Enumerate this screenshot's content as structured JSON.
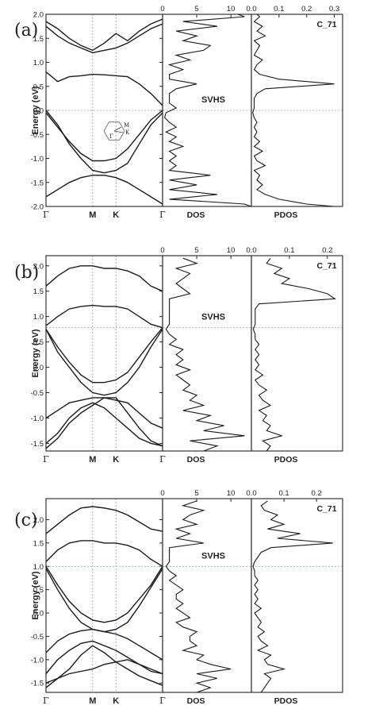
{
  "chart_data": [
    {
      "type": "line",
      "label": "(a)",
      "annotation": "C_71",
      "svhs_label": "SVHS",
      "ylabel": "Energy (eV)",
      "ylim": [
        -2.0,
        2.0
      ],
      "yticks": [
        "2.0",
        "1.5",
        "1.0",
        "0.5",
        "0.0",
        "-0.5",
        "-1.0",
        "-1.5",
        "-2.0"
      ],
      "ytick_values": [
        2.0,
        1.5,
        1.0,
        0.5,
        0.0,
        -0.5,
        -1.0,
        -1.5,
        -2.0
      ],
      "kpoints": [
        "Γ",
        "M",
        "K",
        "Γ"
      ],
      "kpoint_positions": [
        0,
        0.4,
        0.6,
        1.0
      ],
      "fermi_level": 0.0,
      "bands": {
        "k": [
          0,
          0.1,
          0.2,
          0.3,
          0.4,
          0.5,
          0.6,
          0.7,
          0.8,
          0.9,
          1.0
        ],
        "series": [
          {
            "values": [
              1.85,
              1.7,
              1.5,
              1.35,
              1.25,
              1.4,
              1.6,
              1.45,
              1.65,
              1.8,
              1.9
            ]
          },
          {
            "values": [
              1.75,
              1.55,
              1.4,
              1.3,
              1.2,
              1.25,
              1.3,
              1.4,
              1.55,
              1.7,
              1.8
            ]
          },
          {
            "values": [
              0.8,
              0.6,
              0.7,
              0.72,
              0.75,
              0.74,
              0.72,
              0.7,
              0.55,
              0.35,
              0.1
            ]
          },
          {
            "values": [
              -0.05,
              -0.35,
              -0.65,
              -0.9,
              -1.05,
              -1.05,
              -1.0,
              -0.8,
              -0.5,
              -0.2,
              0.0
            ]
          },
          {
            "values": [
              0.0,
              -0.3,
              -0.7,
              -1.0,
              -1.25,
              -1.3,
              -1.25,
              -1.1,
              -0.7,
              -0.3,
              -0.05
            ]
          },
          {
            "values": [
              -1.8,
              -1.65,
              -1.5,
              -1.4,
              -1.35,
              -1.35,
              -1.4,
              -1.5,
              -1.65,
              -1.8,
              -1.95
            ]
          }
        ]
      },
      "dos": {
        "xlabel": "DOS",
        "xticks": [
          "0",
          "5",
          "10"
        ],
        "xtick_values": [
          0,
          5,
          10
        ],
        "xlim": [
          0,
          13
        ],
        "energy": [
          2.0,
          1.95,
          1.85,
          1.75,
          1.65,
          1.55,
          1.45,
          1.35,
          1.25,
          1.15,
          1.05,
          0.95,
          0.85,
          0.75,
          0.65,
          0.55,
          0.45,
          0.35,
          0.25,
          0.15,
          0.05,
          -0.05,
          -0.15,
          -0.25,
          -0.35,
          -0.45,
          -0.55,
          -0.65,
          -0.75,
          -0.85,
          -0.95,
          -1.05,
          -1.15,
          -1.25,
          -1.35,
          -1.45,
          -1.55,
          -1.65,
          -1.75,
          -1.85,
          -1.95,
          -2.0
        ],
        "values": [
          11,
          12,
          3,
          8,
          2,
          5,
          3,
          7,
          6,
          2,
          4,
          1,
          3,
          1,
          1,
          5,
          2,
          1,
          1,
          1,
          2,
          0.5,
          0.3,
          1,
          2,
          0.5,
          2,
          1,
          3,
          1,
          2,
          1,
          2,
          1,
          7,
          1,
          5,
          1,
          8,
          1,
          12,
          13
        ]
      },
      "pdos": {
        "xlabel": "PDOS",
        "xticks": [
          "0.0",
          "0.1",
          "0.2",
          "0.3"
        ],
        "xtick_values": [
          0.0,
          0.1,
          0.2,
          0.3
        ],
        "xlim": [
          0,
          0.33
        ],
        "energy": [
          2.0,
          1.95,
          1.85,
          1.75,
          1.65,
          1.55,
          1.45,
          1.35,
          1.25,
          1.15,
          1.05,
          0.95,
          0.85,
          0.75,
          0.65,
          0.55,
          0.45,
          0.35,
          0.25,
          0.15,
          0.05,
          -0.05,
          -0.15,
          -0.25,
          -0.35,
          -0.45,
          -0.55,
          -0.65,
          -0.75,
          -0.85,
          -0.95,
          -1.05,
          -1.15,
          -1.25,
          -1.35,
          -1.45,
          -1.55,
          -1.65,
          -1.75,
          -1.85,
          -1.95,
          -2.0
        ],
        "values": [
          0.02,
          0.03,
          0.01,
          0.04,
          0.02,
          0.05,
          0.01,
          0.03,
          0.02,
          0.01,
          0.04,
          0.02,
          0.01,
          0.03,
          0.1,
          0.3,
          0.05,
          0.02,
          0.01,
          0.01,
          0.01,
          0.005,
          0.01,
          0.02,
          0.01,
          0.02,
          0.01,
          0.03,
          0.01,
          0.04,
          0.01,
          0.02,
          0.05,
          0.01,
          0.03,
          0.02,
          0.04,
          0.02,
          0.05,
          0.1,
          0.2,
          0.3
        ]
      }
    },
    {
      "type": "line",
      "label": "(b)",
      "annotation": "C_71",
      "svhs_label": "SVHS",
      "ylabel": "Energy (eV)",
      "ylim": [
        -1.65,
        2.2
      ],
      "yticks": [
        "2.0",
        "1.5",
        "1.0",
        "0.5",
        "0.0",
        "-0.5",
        "-1.0",
        "-1.5"
      ],
      "ytick_values": [
        2.0,
        1.5,
        1.0,
        0.5,
        0.0,
        -0.5,
        -1.0,
        -1.5
      ],
      "kpoints": [
        "Γ",
        "M",
        "K",
        "Γ"
      ],
      "kpoint_positions": [
        0,
        0.4,
        0.6,
        1.0
      ],
      "fermi_level": 0.78,
      "bands": {
        "k": [
          0,
          0.1,
          0.2,
          0.3,
          0.4,
          0.5,
          0.6,
          0.7,
          0.8,
          0.9,
          1.0
        ],
        "series": [
          {
            "values": [
              1.6,
              1.8,
              1.95,
              2.0,
              2.0,
              1.95,
              1.95,
              1.9,
              1.8,
              1.6,
              1.5
            ]
          },
          {
            "values": [
              0.82,
              1.0,
              1.15,
              1.2,
              1.22,
              1.2,
              1.2,
              1.15,
              1.0,
              0.85,
              0.78
            ]
          },
          {
            "values": [
              0.75,
              0.4,
              0.1,
              -0.15,
              -0.3,
              -0.3,
              -0.25,
              -0.1,
              0.2,
              0.5,
              0.78
            ]
          },
          {
            "values": [
              0.75,
              0.3,
              0.0,
              -0.3,
              -0.5,
              -0.55,
              -0.5,
              -0.3,
              0.0,
              0.4,
              0.75
            ]
          },
          {
            "values": [
              -1.0,
              -0.85,
              -0.7,
              -0.65,
              -0.6,
              -0.6,
              -0.65,
              -0.7,
              -0.9,
              -1.1,
              -1.2
            ]
          },
          {
            "values": [
              -1.5,
              -1.3,
              -1.0,
              -0.8,
              -0.7,
              -0.8,
              -1.0,
              -1.2,
              -1.4,
              -1.5,
              -1.55
            ]
          },
          {
            "values": [
              -1.6,
              -1.4,
              -1.1,
              -0.9,
              -0.75,
              -0.6,
              -0.6,
              -0.9,
              -1.2,
              -1.45,
              -1.55
            ]
          }
        ]
      },
      "dos": {
        "xlabel": "DOS",
        "xticks": [
          "0",
          "5",
          "10"
        ],
        "xtick_values": [
          0,
          5,
          10
        ],
        "xlim": [
          0,
          13
        ],
        "energy": [
          2.15,
          2.05,
          1.95,
          1.85,
          1.75,
          1.65,
          1.55,
          1.45,
          1.35,
          1.25,
          1.15,
          1.05,
          0.95,
          0.85,
          0.75,
          0.65,
          0.55,
          0.45,
          0.35,
          0.25,
          0.15,
          0.05,
          -0.05,
          -0.15,
          -0.25,
          -0.35,
          -0.45,
          -0.55,
          -0.65,
          -0.75,
          -0.85,
          -0.95,
          -1.05,
          -1.15,
          -1.25,
          -1.35,
          -1.45,
          -1.55,
          -1.65
        ],
        "values": [
          3,
          5,
          2,
          4,
          3,
          2,
          3,
          4,
          1,
          1,
          1,
          1,
          1,
          1,
          0.5,
          1,
          2,
          1,
          3,
          2,
          3,
          2,
          4,
          2,
          3,
          4,
          3,
          5,
          4,
          6,
          3,
          7,
          5,
          9,
          6,
          12,
          4,
          8,
          6
        ]
      },
      "pdos": {
        "xlabel": "PDOS",
        "xticks": [
          "0.0",
          "0.1",
          "0.2"
        ],
        "xtick_values": [
          0.0,
          0.1,
          0.2
        ],
        "xlim": [
          0,
          0.24
        ],
        "energy": [
          2.15,
          2.05,
          1.95,
          1.85,
          1.75,
          1.65,
          1.55,
          1.45,
          1.35,
          1.25,
          1.15,
          1.05,
          0.95,
          0.85,
          0.75,
          0.65,
          0.55,
          0.45,
          0.35,
          0.25,
          0.15,
          0.05,
          -0.05,
          -0.15,
          -0.25,
          -0.35,
          -0.45,
          -0.55,
          -0.65,
          -0.75,
          -0.85,
          -0.95,
          -1.05,
          -1.15,
          -1.25,
          -1.35,
          -1.45,
          -1.55,
          -1.65
        ],
        "values": [
          0.05,
          0.04,
          0.08,
          0.06,
          0.1,
          0.08,
          0.15,
          0.2,
          0.22,
          0.02,
          0.01,
          0.01,
          0.01,
          0.01,
          0.005,
          0.01,
          0.01,
          0.02,
          0.01,
          0.02,
          0.01,
          0.02,
          0.01,
          0.03,
          0.01,
          0.02,
          0.04,
          0.02,
          0.03,
          0.05,
          0.02,
          0.04,
          0.03,
          0.05,
          0.04,
          0.08,
          0.03,
          0.05,
          0.04
        ]
      }
    },
    {
      "type": "line",
      "label": "(c)",
      "annotation": "C_71",
      "svhs_label": "SVHS",
      "ylabel": "Energy (eV)",
      "ylim": [
        -1.7,
        2.45
      ],
      "yticks": [
        "2.0",
        "1.5",
        "1.0",
        "0.5",
        "0.0",
        "-0.5",
        "-1.0",
        "-1.5"
      ],
      "ytick_values": [
        2.0,
        1.5,
        1.0,
        0.5,
        0.0,
        -0.5,
        -1.0,
        -1.5
      ],
      "kpoints": [
        "Γ",
        "M",
        "K",
        "Γ"
      ],
      "kpoint_positions": [
        0,
        0.4,
        0.6,
        1.0
      ],
      "fermi_level": 1.0,
      "bands": {
        "k": [
          0,
          0.1,
          0.2,
          0.3,
          0.4,
          0.5,
          0.6,
          0.7,
          0.8,
          0.9,
          1.0
        ],
        "series": [
          {
            "values": [
              1.7,
              1.9,
              2.1,
              2.25,
              2.28,
              2.25,
              2.2,
              2.1,
              1.95,
              1.8,
              1.75
            ]
          },
          {
            "values": [
              1.1,
              1.35,
              1.5,
              1.55,
              1.55,
              1.5,
              1.5,
              1.45,
              1.35,
              1.15,
              1.0
            ]
          },
          {
            "values": [
              1.0,
              0.6,
              0.25,
              0.0,
              -0.15,
              -0.2,
              -0.15,
              0.0,
              0.3,
              0.6,
              1.0
            ]
          },
          {
            "values": [
              0.95,
              0.5,
              0.1,
              -0.2,
              -0.35,
              -0.4,
              -0.35,
              -0.2,
              0.15,
              0.55,
              0.95
            ]
          },
          {
            "values": [
              -0.85,
              -0.6,
              -0.45,
              -0.38,
              -0.35,
              -0.4,
              -0.45,
              -0.55,
              -0.7,
              -0.85,
              -1.0
            ]
          },
          {
            "values": [
              -1.3,
              -1.0,
              -0.8,
              -0.65,
              -0.6,
              -0.7,
              -0.8,
              -0.95,
              -1.1,
              -1.2,
              -1.3
            ]
          },
          {
            "values": [
              -1.6,
              -1.4,
              -1.2,
              -0.9,
              -0.7,
              -0.85,
              -1.05,
              -1.2,
              -1.35,
              -1.45,
              -1.55
            ]
          },
          {
            "values": [
              -1.5,
              -1.4,
              -1.3,
              -1.25,
              -1.2,
              -1.1,
              -1.05,
              -1.0,
              -1.1,
              -1.25,
              -1.3
            ]
          }
        ]
      },
      "dos": {
        "xlabel": "DOS",
        "xticks": [
          "0",
          "5",
          "10"
        ],
        "xtick_values": [
          0,
          5,
          10
        ],
        "xlim": [
          0,
          13
        ],
        "energy": [
          2.4,
          2.3,
          2.2,
          2.1,
          2.0,
          1.9,
          1.8,
          1.7,
          1.6,
          1.5,
          1.4,
          1.3,
          1.2,
          1.1,
          1.0,
          0.9,
          0.8,
          0.7,
          0.6,
          0.5,
          0.4,
          0.3,
          0.2,
          0.1,
          0.0,
          -0.1,
          -0.2,
          -0.3,
          -0.4,
          -0.5,
          -0.6,
          -0.7,
          -0.8,
          -0.9,
          -1.0,
          -1.1,
          -1.2,
          -1.3,
          -1.4,
          -1.5,
          -1.6,
          -1.7
        ],
        "values": [
          5,
          3,
          6,
          4,
          3,
          5,
          2,
          4,
          2,
          6,
          1,
          1,
          1,
          1,
          0.5,
          1,
          2,
          1,
          2,
          3,
          2,
          2,
          3,
          2,
          3,
          4,
          2,
          3,
          5,
          4,
          4,
          5,
          3,
          6,
          5,
          7,
          10,
          5,
          8,
          5,
          7,
          5
        ]
      },
      "pdos": {
        "xlabel": "PDOS",
        "xticks": [
          "0.0",
          "0.1",
          "0.2"
        ],
        "xtick_values": [
          0.0,
          0.1,
          0.2
        ],
        "xlim": [
          0,
          0.28
        ],
        "energy": [
          2.4,
          2.3,
          2.2,
          2.1,
          2.0,
          1.9,
          1.8,
          1.7,
          1.6,
          1.5,
          1.4,
          1.3,
          1.2,
          1.1,
          1.0,
          0.9,
          0.8,
          0.7,
          0.6,
          0.5,
          0.4,
          0.3,
          0.2,
          0.1,
          0.0,
          -0.1,
          -0.2,
          -0.3,
          -0.4,
          -0.5,
          -0.6,
          -0.7,
          -0.8,
          -0.9,
          -1.0,
          -1.1,
          -1.2,
          -1.3,
          -1.4,
          -1.5,
          -1.6,
          -1.7
        ],
        "values": [
          0.05,
          0.03,
          0.04,
          0.08,
          0.06,
          0.1,
          0.05,
          0.15,
          0.08,
          0.25,
          0.06,
          0.03,
          0.02,
          0.01,
          0.005,
          0.01,
          0.01,
          0.02,
          0.01,
          0.02,
          0.01,
          0.02,
          0.01,
          0.03,
          0.01,
          0.02,
          0.03,
          0.02,
          0.04,
          0.02,
          0.03,
          0.05,
          0.02,
          0.06,
          0.04,
          0.05,
          0.1,
          0.04,
          0.06,
          0.05,
          0.04,
          0.03
        ]
      }
    }
  ],
  "colors": {
    "line": "#1a1a1a",
    "grid": "#8aa0c8",
    "frame": "#222222"
  }
}
